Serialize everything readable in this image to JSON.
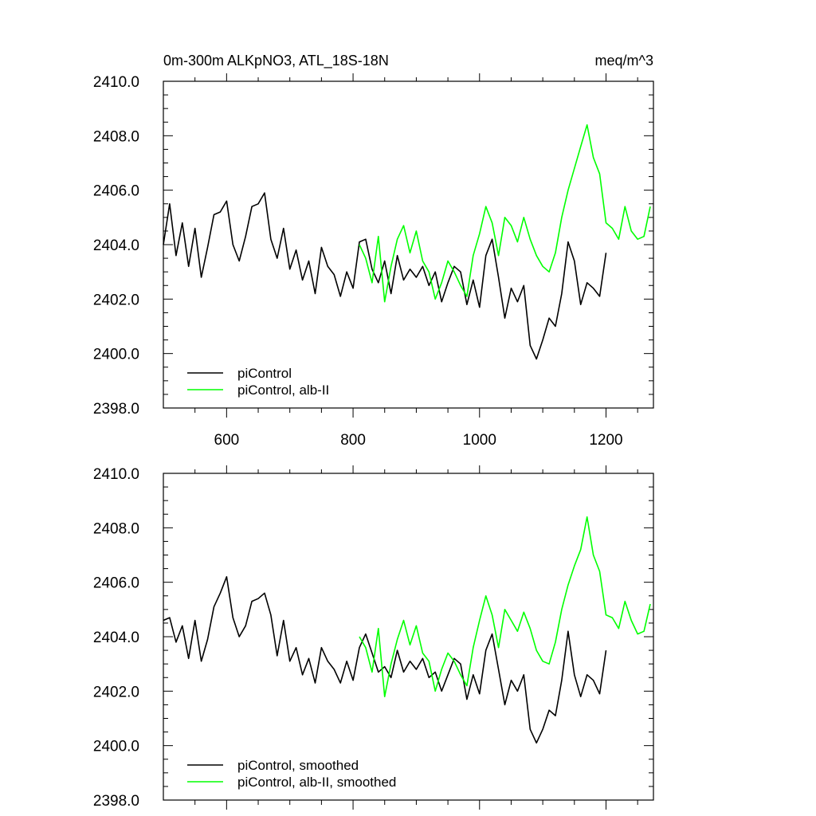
{
  "chart_data": [
    {
      "type": "line",
      "title": "0m-300m ALKpNO3, ATL_18S-18N",
      "units": "meq/m^3",
      "xlim": [
        500,
        1275
      ],
      "ylim": [
        2398,
        2410
      ],
      "x_ticks": [
        600,
        800,
        1000,
        1200
      ],
      "x_tick_labels": [
        "600",
        "800",
        "1000",
        "1200"
      ],
      "y_ticks": [
        2398,
        2400,
        2402,
        2404,
        2406,
        2408,
        2410
      ],
      "y_tick_labels": [
        "2398.0",
        "2400.0",
        "2402.0",
        "2404.0",
        "2406.0",
        "2408.0",
        "2410.0"
      ],
      "legend_position": "bottom-left",
      "series": [
        {
          "name": "piControl",
          "color": "#000000",
          "x": [
            500,
            510,
            520,
            530,
            540,
            550,
            560,
            570,
            580,
            590,
            600,
            610,
            620,
            630,
            640,
            650,
            660,
            670,
            680,
            690,
            700,
            710,
            720,
            730,
            740,
            750,
            760,
            770,
            780,
            790,
            800,
            810,
            820,
            830,
            840,
            850,
            860,
            870,
            880,
            890,
            900,
            910,
            920,
            930,
            940,
            950,
            960,
            970,
            980,
            990,
            1000,
            1010,
            1020,
            1030,
            1040,
            1050,
            1060,
            1070,
            1080,
            1090,
            1100,
            1110,
            1120,
            1130,
            1140,
            1150,
            1160,
            1170,
            1180,
            1190,
            1200
          ],
          "y": [
            2404.0,
            2405.5,
            2403.6,
            2404.8,
            2403.2,
            2404.6,
            2402.8,
            2403.9,
            2405.1,
            2405.2,
            2405.6,
            2404.0,
            2403.4,
            2404.3,
            2405.4,
            2405.5,
            2405.9,
            2404.2,
            2403.5,
            2404.6,
            2403.1,
            2403.8,
            2402.7,
            2403.4,
            2402.2,
            2403.9,
            2403.2,
            2402.9,
            2402.1,
            2403.0,
            2402.4,
            2404.1,
            2404.2,
            2403.1,
            2402.6,
            2403.4,
            2402.2,
            2403.6,
            2402.7,
            2403.1,
            2402.8,
            2403.2,
            2402.5,
            2403.0,
            2401.9,
            2402.6,
            2403.2,
            2403.0,
            2401.8,
            2402.7,
            2401.7,
            2403.6,
            2404.2,
            2402.8,
            2401.3,
            2402.4,
            2401.9,
            2402.5,
            2400.3,
            2399.8,
            2400.5,
            2401.3,
            2401.0,
            2402.2,
            2404.1,
            2403.4,
            2401.8,
            2402.6,
            2402.4,
            2402.1,
            2403.7
          ]
        },
        {
          "name": "piControl, alb-II",
          "color": "#00ff00",
          "x": [
            810,
            820,
            830,
            840,
            850,
            860,
            870,
            880,
            890,
            900,
            910,
            920,
            930,
            940,
            950,
            960,
            970,
            980,
            990,
            1000,
            1010,
            1020,
            1030,
            1040,
            1050,
            1060,
            1070,
            1080,
            1090,
            1100,
            1110,
            1120,
            1130,
            1140,
            1150,
            1160,
            1170,
            1180,
            1190,
            1200,
            1210,
            1220,
            1230,
            1240,
            1250,
            1260,
            1270
          ],
          "y": [
            2404.0,
            2403.5,
            2402.6,
            2404.3,
            2401.9,
            2403.2,
            2404.2,
            2404.7,
            2403.7,
            2404.5,
            2403.4,
            2403.0,
            2402.0,
            2402.6,
            2403.4,
            2403.0,
            2402.5,
            2402.1,
            2403.6,
            2404.4,
            2405.4,
            2404.8,
            2403.6,
            2405.0,
            2404.7,
            2404.1,
            2405.0,
            2404.2,
            2403.6,
            2403.2,
            2403.0,
            2403.7,
            2405.0,
            2406.0,
            2406.8,
            2407.6,
            2408.4,
            2407.2,
            2406.6,
            2404.8,
            2404.6,
            2404.2,
            2405.4,
            2404.5,
            2404.2,
            2404.3,
            2405.4
          ]
        }
      ]
    },
    {
      "type": "line",
      "title": "",
      "xlim": [
        500,
        1275
      ],
      "ylim": [
        2398,
        2410
      ],
      "x_ticks": [
        600,
        800,
        1000,
        1200
      ],
      "y_ticks": [
        2398,
        2400,
        2402,
        2404,
        2406,
        2408,
        2410
      ],
      "y_tick_labels": [
        "2398.0",
        "2400.0",
        "2402.0",
        "2404.0",
        "2406.0",
        "2408.0",
        "2410.0"
      ],
      "legend_position": "bottom-left",
      "series": [
        {
          "name": "piControl, smoothed",
          "color": "#000000",
          "x": [
            500,
            510,
            520,
            530,
            540,
            550,
            560,
            570,
            580,
            590,
            600,
            610,
            620,
            630,
            640,
            650,
            660,
            670,
            680,
            690,
            700,
            710,
            720,
            730,
            740,
            750,
            760,
            770,
            780,
            790,
            800,
            810,
            820,
            830,
            840,
            850,
            860,
            870,
            880,
            890,
            900,
            910,
            920,
            930,
            940,
            950,
            960,
            970,
            980,
            990,
            1000,
            1010,
            1020,
            1030,
            1040,
            1050,
            1060,
            1070,
            1080,
            1090,
            1100,
            1110,
            1120,
            1130,
            1140,
            1150,
            1160,
            1170,
            1180,
            1190,
            1200
          ],
          "y": [
            2404.6,
            2404.7,
            2403.8,
            2404.4,
            2403.2,
            2404.6,
            2403.1,
            2403.9,
            2405.1,
            2405.6,
            2406.2,
            2404.7,
            2404.0,
            2404.4,
            2405.3,
            2405.4,
            2405.6,
            2404.8,
            2403.3,
            2404.6,
            2403.1,
            2403.6,
            2402.6,
            2403.2,
            2402.3,
            2403.6,
            2403.1,
            2402.8,
            2402.3,
            2403.1,
            2402.4,
            2403.6,
            2404.1,
            2403.4,
            2402.7,
            2402.9,
            2402.5,
            2403.5,
            2402.7,
            2403.1,
            2402.8,
            2403.2,
            2402.5,
            2402.7,
            2402.0,
            2402.6,
            2403.2,
            2403.0,
            2401.7,
            2402.6,
            2401.9,
            2403.5,
            2404.1,
            2402.8,
            2401.5,
            2402.4,
            2402.0,
            2402.6,
            2400.6,
            2400.1,
            2400.6,
            2401.3,
            2401.1,
            2402.4,
            2404.2,
            2402.6,
            2401.8,
            2402.6,
            2402.4,
            2401.9,
            2403.5
          ]
        },
        {
          "name": "piControl, alb-II, smoothed",
          "color": "#00ff00",
          "x": [
            810,
            820,
            830,
            840,
            850,
            860,
            870,
            880,
            890,
            900,
            910,
            920,
            930,
            940,
            950,
            960,
            970,
            980,
            990,
            1000,
            1010,
            1020,
            1030,
            1040,
            1050,
            1060,
            1070,
            1080,
            1090,
            1100,
            1110,
            1120,
            1130,
            1140,
            1150,
            1160,
            1170,
            1180,
            1190,
            1200,
            1210,
            1220,
            1230,
            1240,
            1250,
            1260,
            1270
          ],
          "y": [
            2404.0,
            2403.6,
            2402.7,
            2404.3,
            2401.8,
            2403.0,
            2403.9,
            2404.6,
            2403.7,
            2404.4,
            2403.4,
            2403.1,
            2402.0,
            2402.8,
            2403.4,
            2403.1,
            2402.6,
            2402.2,
            2403.6,
            2404.6,
            2405.5,
            2404.8,
            2403.6,
            2405.0,
            2404.6,
            2404.2,
            2404.9,
            2404.3,
            2403.5,
            2403.1,
            2403.0,
            2403.8,
            2405.0,
            2405.9,
            2406.6,
            2407.2,
            2408.4,
            2407.0,
            2406.4,
            2404.8,
            2404.7,
            2404.3,
            2405.3,
            2404.6,
            2404.1,
            2404.2,
            2405.2
          ]
        }
      ]
    }
  ]
}
